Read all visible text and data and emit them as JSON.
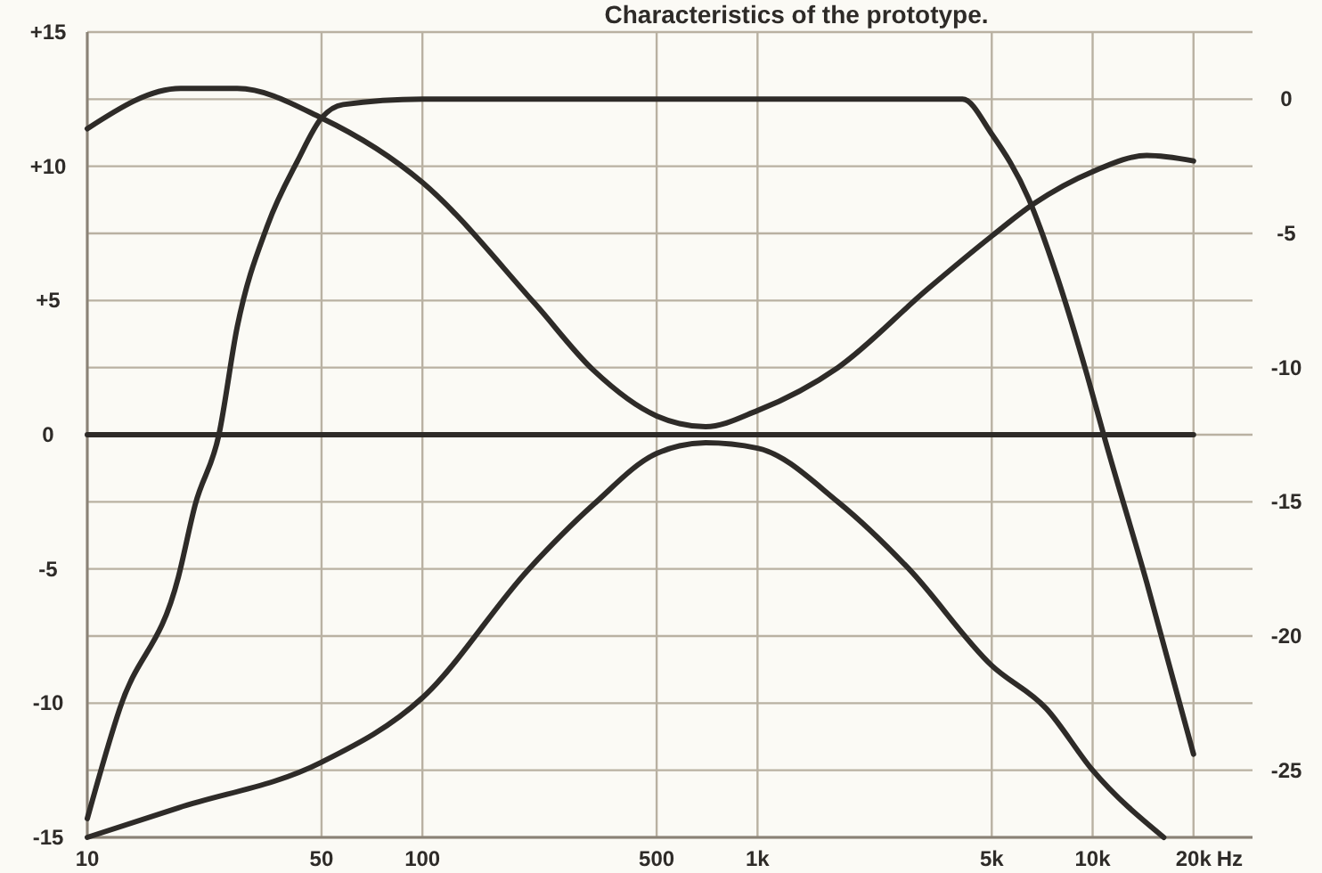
{
  "chart_data": {
    "type": "line",
    "title": "Characteristics of the prototype.",
    "log": "x",
    "grid": true,
    "line_style": "solid",
    "xlim": [
      10,
      30000
    ],
    "xticks": [
      10,
      50,
      100,
      500,
      {
        "value": 1000,
        "label": "1k"
      },
      {
        "value": 5000,
        "label": "5k"
      },
      {
        "value": 10000,
        "label": "10k"
      },
      {
        "value": 20000,
        "label": "20k"
      }
    ],
    "xlabel": "Hz",
    "ylim": [
      -15,
      15
    ],
    "yticks": [
      {
        "value": 15,
        "label": "+15"
      },
      {
        "value": 12.5,
        "label": null
      },
      {
        "value": 10,
        "label": "+10"
      },
      {
        "value": 7.5,
        "label": null
      },
      {
        "value": 5,
        "label": "+5"
      },
      {
        "value": 2.5,
        "label": null
      },
      0,
      {
        "value": -2.5,
        "label": null
      },
      -5,
      {
        "value": -7.5,
        "label": null
      },
      -10,
      {
        "value": -12.5,
        "label": null
      },
      -15
    ],
    "y2lim": [
      -27.5,
      2.5
    ],
    "y2ticks": [
      0,
      -5,
      -10,
      -15,
      -20,
      -25
    ],
    "series": [
      {
        "color": "#2e2b28",
        "x": [
          10,
          19,
          28,
          50,
          100,
          216,
          324,
          500,
          700,
          1000,
          1737,
          3200,
          5000,
          6670,
          10000,
          14500,
          20000
        ],
        "values": [
          11.4,
          12.9,
          12.9,
          11.8,
          9.4,
          4.9,
          2.4,
          0.7,
          0.3,
          0.9,
          2.5,
          5.4,
          7.4,
          8.6,
          9.8,
          10.4,
          10.2
        ]
      },
      {
        "color": "#2e2b28",
        "x": [
          10,
          18.7,
          50,
          100,
          208,
          324,
          500,
          700,
          1000,
          1737,
          2830,
          5000,
          7270,
          10000,
          16300
        ],
        "values": [
          -15,
          -13.9,
          -12.2,
          -9.8,
          -5,
          -2.6,
          -0.7,
          -0.3,
          -0.5,
          -2.5,
          -5,
          -8.6,
          -10.2,
          -12.5,
          -15
        ]
      },
      {
        "color": "#2e2b28",
        "x": [
          10,
          20000
        ],
        "values": [
          0,
          0
        ]
      },
      {
        "color": "#2e2b28",
        "axis": "y2",
        "x": [
          10,
          12.5,
          18.7,
          21,
          24.7,
          28,
          34.5,
          42.4,
          50,
          58,
          100,
          1000,
          4090,
          5000,
          6440,
          7830,
          9640,
          10900,
          14500,
          20000
        ],
        "values": [
          -26.8,
          -22.7,
          -17.8,
          -15.1,
          -12.5,
          -8.5,
          -4.7,
          -2.3,
          -0.7,
          -0.2,
          0,
          0,
          0,
          -1.3,
          -3.7,
          -6.6,
          -10.3,
          -12.7,
          -18,
          -24.4
        ]
      }
    ]
  }
}
